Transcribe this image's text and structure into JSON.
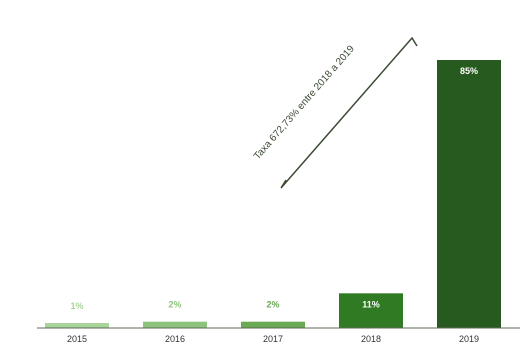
{
  "chart_data": {
    "type": "bar",
    "title": "",
    "xlabel": "",
    "ylabel": "",
    "categories": [
      "2015",
      "2016",
      "2017",
      "2018",
      "2019"
    ],
    "values": [
      1,
      2,
      2,
      11,
      85
    ],
    "value_labels": [
      "1%",
      "2%",
      "2%",
      "11%",
      "85%"
    ],
    "ylim": [
      0,
      85
    ],
    "grid": false,
    "legend": "none",
    "bar_colors": [
      "#a9d49a",
      "#8cc47d",
      "#6aaa55",
      "#2f7a23",
      "#275a1e"
    ],
    "label_colors": [
      "#a9d49a",
      "#8cc47d",
      "#6aaa55",
      "#ffffff",
      "#ffffff"
    ],
    "axis_color": "#5c6b54",
    "annotation": {
      "text": "Taxa 672,73% entre 2018 a 2019",
      "color": "#3b4a35"
    }
  }
}
